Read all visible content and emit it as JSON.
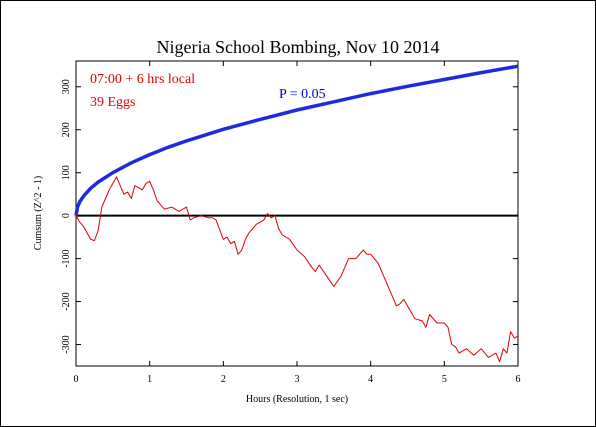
{
  "chart_data": {
    "type": "line",
    "title": "Nigeria School Bombing, Nov 10 2014",
    "xlabel": "Hours (Resolution, 1 sec)",
    "ylabel": "Cumsum (Z^2 - 1)",
    "xlim": [
      0,
      6
    ],
    "ylim": [
      -350,
      360
    ],
    "x_ticks": [
      0,
      1,
      2,
      3,
      4,
      5,
      6
    ],
    "y_ticks": [
      -300,
      -200,
      -100,
      0,
      100,
      200,
      300
    ],
    "annotations": [
      {
        "text": "07:00 + 6 hrs local",
        "color": "#dd0000"
      },
      {
        "text": "39 Eggs",
        "color": "#dd0000"
      },
      {
        "text": "P = 0.05",
        "color": "#0000cc"
      }
    ],
    "series": [
      {
        "role": "cumulative deviation",
        "color": "#dd0000",
        "x": [
          0,
          0.05,
          0.1,
          0.15,
          0.2,
          0.25,
          0.3,
          0.35,
          0.4,
          0.45,
          0.5,
          0.55,
          0.6,
          0.65,
          0.7,
          0.75,
          0.8,
          0.9,
          0.95,
          1.0,
          1.05,
          1.1,
          1.15,
          1.2,
          1.3,
          1.4,
          1.45,
          1.5,
          1.55,
          1.6,
          1.7,
          1.8,
          1.85,
          1.9,
          2.0,
          2.05,
          2.1,
          2.15,
          2.2,
          2.25,
          2.3,
          2.35,
          2.4,
          2.45,
          2.5,
          2.55,
          2.6,
          2.65,
          2.7,
          2.75,
          2.8,
          2.9,
          3.0,
          3.1,
          3.2,
          3.25,
          3.3,
          3.4,
          3.5,
          3.6,
          3.65,
          3.7,
          3.8,
          3.9,
          3.95,
          4.0,
          4.1,
          4.2,
          4.3,
          4.35,
          4.4,
          4.45,
          4.5,
          4.6,
          4.7,
          4.75,
          4.8,
          4.9,
          5.0,
          5.05,
          5.1,
          5.15,
          5.2,
          5.3,
          5.4,
          5.5,
          5.6,
          5.7,
          5.75,
          5.8,
          5.85,
          5.9,
          5.95,
          6.0
        ],
        "y": [
          0,
          -15,
          -25,
          -40,
          -55,
          -58,
          -35,
          20,
          40,
          60,
          75,
          90,
          70,
          50,
          55,
          40,
          70,
          60,
          75,
          80,
          60,
          35,
          25,
          15,
          20,
          10,
          15,
          20,
          -10,
          -5,
          0,
          -5,
          -5,
          -10,
          -55,
          -50,
          -65,
          -60,
          -90,
          -80,
          -55,
          -40,
          -30,
          -20,
          -15,
          -10,
          5,
          -5,
          0,
          -30,
          -45,
          -55,
          -80,
          -95,
          -120,
          -130,
          -115,
          -140,
          -165,
          -140,
          -120,
          -100,
          -100,
          -80,
          -90,
          -90,
          -110,
          -150,
          -190,
          -210,
          -205,
          -195,
          -210,
          -240,
          -245,
          -260,
          -230,
          -250,
          -250,
          -260,
          -300,
          -305,
          -320,
          -310,
          -325,
          -310,
          -330,
          -320,
          -340,
          -310,
          -320,
          -270,
          -285,
          -280
        ]
      },
      {
        "role": "significance envelope",
        "name": "P = 0.05",
        "color": "#1f2ae0",
        "x": [
          0,
          0.02,
          0.05,
          0.1,
          0.2,
          0.3,
          0.5,
          0.75,
          1.0,
          1.25,
          1.5,
          2.0,
          2.5,
          3.0,
          3.5,
          4.0,
          4.5,
          5.0,
          5.5,
          6.0
        ],
        "y": [
          0,
          20,
          32,
          45,
          64,
          78,
          100,
          123,
          142,
          159,
          174,
          201,
          224,
          246,
          265,
          284,
          301,
          317,
          333,
          348
        ]
      },
      {
        "role": "baseline",
        "color": "#000000",
        "x": [
          0,
          6
        ],
        "y": [
          0,
          0
        ]
      }
    ],
    "grid": false
  }
}
